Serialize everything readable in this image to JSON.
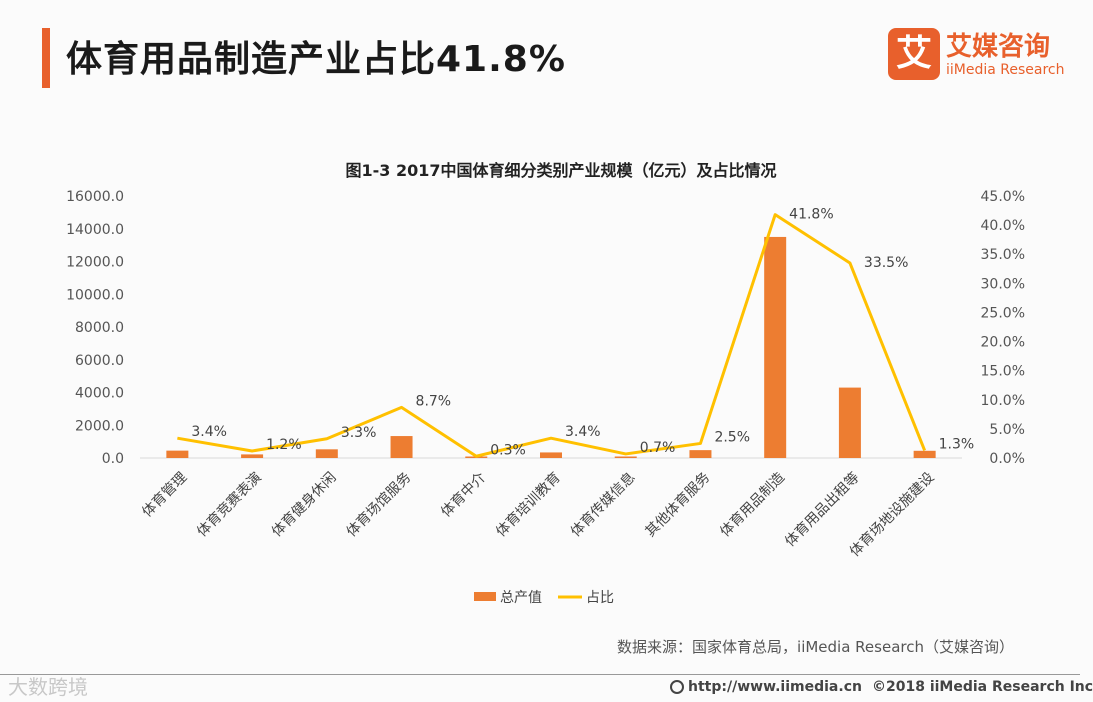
{
  "header": {
    "title": "体育用品制造产业占比41.8%",
    "logo_mark": "艾",
    "logo_cn": "艾媒咨询",
    "logo_en": "iiMedia Research"
  },
  "colors": {
    "accent": "#e8602c",
    "bar": "#ed7d31",
    "line": "#ffc000"
  },
  "chart_data": {
    "type": "bar+line",
    "title": "图1-3 2017中国体育细分类别产业规模（亿元）及占比情况",
    "categories": [
      "体育管理",
      "体育竞赛表演",
      "体育健身休闲",
      "体育场馆服务",
      "体育中介",
      "体育培训教育",
      "体育传媒信息",
      "其他体育服务",
      "体育用品制造",
      "体育用品出租等",
      "体育场地设施建设"
    ],
    "series": [
      {
        "name": "总产值",
        "type": "bar",
        "axis": "left",
        "values": [
          450,
          220,
          530,
          1340,
          20,
          340,
          70,
          480,
          13500,
          4300,
          440
        ]
      },
      {
        "name": "占比",
        "type": "line",
        "axis": "right",
        "values": [
          3.4,
          1.2,
          3.3,
          8.7,
          0.3,
          3.4,
          0.7,
          2.5,
          41.8,
          33.5,
          1.3
        ],
        "labels": [
          "3.4%",
          "1.2%",
          "3.3%",
          "8.7%",
          "0.3%",
          "3.4%",
          "0.7%",
          "2.5%",
          "41.8%",
          "33.5%",
          "1.3%"
        ]
      }
    ],
    "ylim_left": [
      0,
      16000
    ],
    "ylim_right": [
      0,
      45
    ],
    "left_ticks": [
      "0.0",
      "2000.0",
      "4000.0",
      "6000.0",
      "8000.0",
      "10000.0",
      "12000.0",
      "14000.0",
      "16000.0"
    ],
    "right_ticks": [
      "0.0%",
      "5.0%",
      "10.0%",
      "15.0%",
      "20.0%",
      "25.0%",
      "30.0%",
      "35.0%",
      "40.0%",
      "45.0%"
    ],
    "legend": [
      "总产值",
      "占比"
    ],
    "legend_position": "bottom"
  },
  "footer": {
    "source": "数据来源：国家体育总局，iiMedia Research（艾媒咨询）",
    "website": "http://www.iimedia.cn",
    "copyright": "©2018  iiMedia Research Inc",
    "watermark": "大数跨境"
  }
}
